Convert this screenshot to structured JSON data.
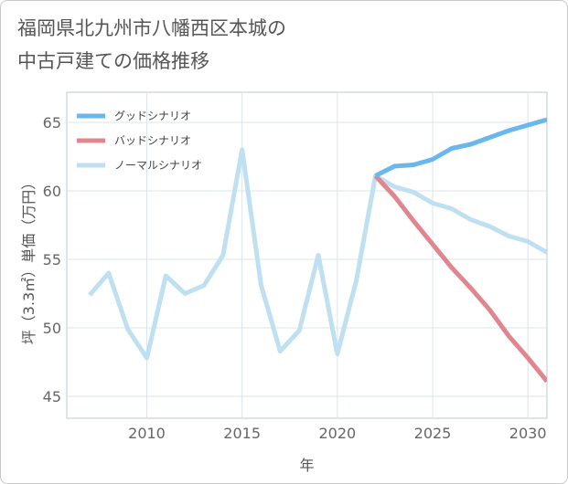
{
  "chart_data": {
    "type": "line",
    "title": "福岡県北九州市八幡西区本城の\n中古戸建ての価格推移",
    "xlabel": "年",
    "ylabel": "坪（3.3㎡）単価（万円）",
    "xlim": [
      2005.8,
      2031
    ],
    "ylim": [
      43.4,
      67.2
    ],
    "xticks": [
      2010,
      2015,
      2020,
      2025,
      2030
    ],
    "yticks": [
      45,
      50,
      55,
      60,
      65
    ],
    "grid": true,
    "legend_position": "top-left",
    "series": [
      {
        "name": "グッドシナリオ",
        "color": "#6ab7ee",
        "x": [
          2022,
          2023,
          2024,
          2025,
          2026,
          2027,
          2028,
          2029,
          2030,
          2031
        ],
        "y": [
          61.1,
          61.8,
          61.9,
          62.3,
          63.1,
          63.4,
          63.9,
          64.4,
          64.8,
          65.2
        ]
      },
      {
        "name": "バッドシナリオ",
        "color": "#e0868e",
        "x": [
          2022,
          2023,
          2024,
          2025,
          2026,
          2027,
          2028,
          2029,
          2030,
          2031
        ],
        "y": [
          61.1,
          59.6,
          57.8,
          56.1,
          54.4,
          52.9,
          51.3,
          49.4,
          47.8,
          46.1
        ]
      },
      {
        "name": "ノーマルシナリオ",
        "color": "#bfe0f0",
        "x": [
          2007,
          2008,
          2009,
          2010,
          2011,
          2012,
          2013,
          2014,
          2015,
          2016,
          2017,
          2018,
          2019,
          2020,
          2021,
          2022,
          2023,
          2024,
          2025,
          2026,
          2027,
          2028,
          2029,
          2030,
          2031
        ],
        "y": [
          52.4,
          54.0,
          49.9,
          47.8,
          53.8,
          52.5,
          53.1,
          55.3,
          63.0,
          53.1,
          48.3,
          49.8,
          55.3,
          48.1,
          53.5,
          61.1,
          60.3,
          59.9,
          59.1,
          58.7,
          57.9,
          57.4,
          56.7,
          56.3,
          55.5
        ]
      }
    ]
  }
}
